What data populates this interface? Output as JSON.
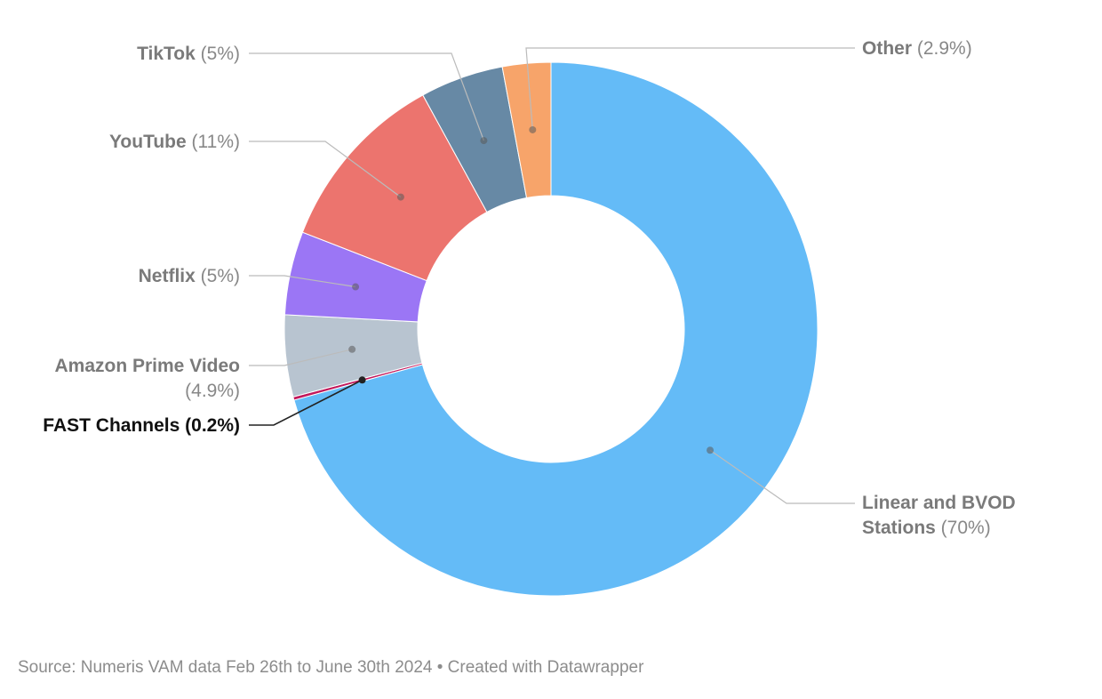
{
  "chart_data": {
    "type": "pie",
    "donut": true,
    "slices": [
      {
        "name": "Linear and BVOD Stations",
        "name_lines": [
          "Linear and BVOD",
          "Stations"
        ],
        "pct_text": "(70%)",
        "value": 70,
        "color": "#64bbf7"
      },
      {
        "name": "FAST Channels",
        "pct_text": "(0.2%)",
        "value": 0.2,
        "color": "#c2185b",
        "highlight": true
      },
      {
        "name": "Amazon Prime Video",
        "pct_text": "(4.9%)",
        "value": 4.9,
        "color": "#b8c4d0"
      },
      {
        "name": "Netflix",
        "pct_text": "(5%)",
        "value": 5,
        "color": "#9b76f5"
      },
      {
        "name": "YouTube",
        "pct_text": "(11%)",
        "value": 11,
        "color": "#ec746e"
      },
      {
        "name": "TikTok",
        "pct_text": "(5%)",
        "value": 5,
        "color": "#6789a5"
      },
      {
        "name": "Other",
        "pct_text": "(2.9%)",
        "value": 2.9,
        "color": "#f7a46a"
      }
    ]
  },
  "footer": {
    "source": "Source: Numeris VAM data Feb 26th to June 30th 2024 • Created with Datawrapper"
  }
}
